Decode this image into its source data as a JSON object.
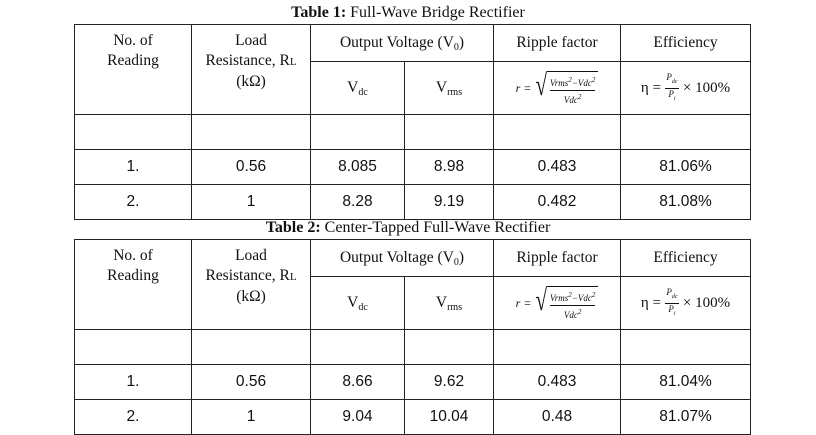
{
  "tables": [
    {
      "caption_bold": "Table 1:",
      "caption_text": "Full-Wave Bridge Rectifier",
      "headers": {
        "reading": [
          "No. of",
          "Reading"
        ],
        "resistance": [
          "Load",
          "Resistance, R",
          "L",
          "(kΩ)"
        ],
        "output_voltage": "Output Voltage (V",
        "output_voltage_sub": "0",
        "output_voltage_close": ")",
        "ripple": "Ripple factor",
        "efficiency": "Efficiency",
        "vdc": "V",
        "vdc_sub": "dc",
        "vrms": "V",
        "vrms_sub": "rms"
      },
      "rows": [
        {
          "no": "1.",
          "rl": "0.56",
          "vdc": "8.085",
          "vrms": "8.98",
          "ripple": "0.483",
          "eff": "81.06%"
        },
        {
          "no": "2.",
          "rl": "1",
          "vdc": "8.28",
          "vrms": "9.19",
          "ripple": "0.482",
          "eff": "81.08%"
        }
      ]
    },
    {
      "caption_bold": "Table 2:",
      "caption_text": "Center-Tapped Full-Wave Rectifier",
      "headers": {
        "reading": [
          "No. of",
          "Reading"
        ],
        "resistance": [
          "Load",
          "Resistance, R",
          "L",
          "(kΩ)"
        ],
        "output_voltage": "Output Voltage (V",
        "output_voltage_sub": "0",
        "output_voltage_close": ")",
        "ripple": "Ripple factor",
        "efficiency": "Efficiency",
        "vdc": "V",
        "vdc_sub": "dc",
        "vrms": "V",
        "vrms_sub": "rms"
      },
      "rows": [
        {
          "no": "1.",
          "rl": "0.56",
          "vdc": "8.66",
          "vrms": "9.62",
          "ripple": "0.483",
          "eff": "81.04%"
        },
        {
          "no": "2.",
          "rl": "1",
          "vdc": "9.04",
          "vrms": "10.04",
          "ripple": "0.48",
          "eff": "81.07%"
        }
      ]
    }
  ],
  "formulas": {
    "ripple_lhs": "r =",
    "ripple_num": "Vrms",
    "ripple_num_sq": "2",
    "ripple_minus": "−Vdc",
    "ripple_minus_sq": "2",
    "ripple_den": "Vdc",
    "ripple_den_sq": "2",
    "eff_lhs": "η =",
    "eff_num": "P",
    "eff_num_sub": "dc",
    "eff_den": "P",
    "eff_den_sub": "i",
    "eff_rhs": "× 100%"
  }
}
